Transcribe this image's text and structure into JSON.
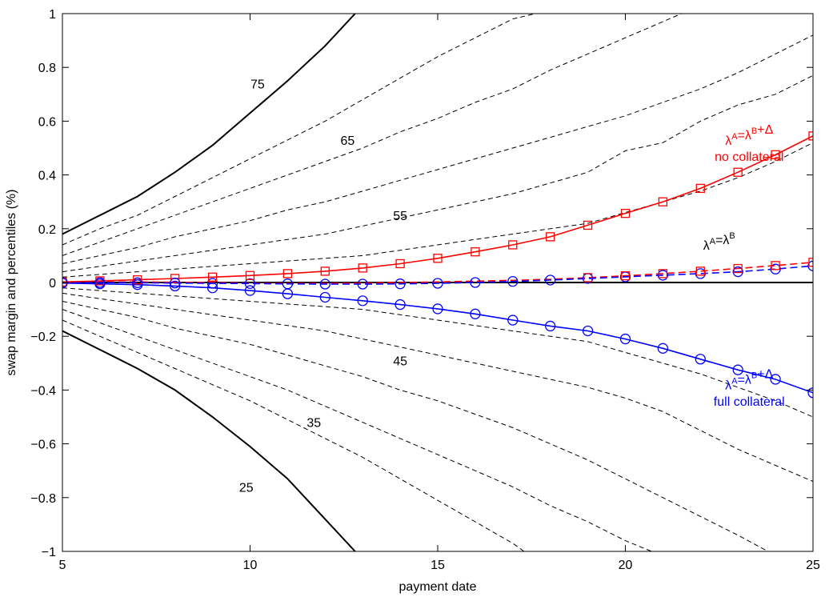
{
  "chart_data": {
    "type": "line",
    "title": "",
    "xlabel": "payment date",
    "ylabel": "swap margin and percentiles (%)",
    "xlim": [
      5,
      25
    ],
    "ylim": [
      -1,
      1
    ],
    "xticks": [
      5,
      10,
      15,
      20,
      25
    ],
    "yticks": [
      -1,
      -0.8,
      -0.6,
      -0.4,
      -0.2,
      0,
      0.2,
      0.4,
      0.6,
      0.8,
      1
    ],
    "ytick_labels": [
      "−1",
      "−0.8",
      "−0.6",
      "−0.4",
      "−0.2",
      "0",
      "0.2",
      "0.4",
      "0.6",
      "0.8",
      "1"
    ],
    "grid": false,
    "legend": "none",
    "colors": {
      "red": "#ff0000",
      "blue": "#0000ff",
      "black": "#000000"
    },
    "percentile_curves": [
      {
        "label": "75",
        "style": "solid",
        "x": [
          5,
          6,
          7,
          8,
          9,
          10,
          11,
          12,
          12.8
        ],
        "y": [
          0.18,
          0.25,
          0.32,
          0.41,
          0.51,
          0.63,
          0.75,
          0.88,
          1.0
        ]
      },
      {
        "label": "",
        "style": "dashed",
        "x": [
          5,
          6,
          7,
          8,
          9,
          10,
          11,
          12,
          13,
          14,
          15,
          16,
          17,
          17.6
        ],
        "y": [
          0.14,
          0.2,
          0.25,
          0.32,
          0.39,
          0.46,
          0.53,
          0.6,
          0.68,
          0.76,
          0.84,
          0.91,
          0.98,
          1.0
        ]
      },
      {
        "label": "65",
        "style": "dashed",
        "x": [
          5,
          6,
          7,
          8,
          9,
          10,
          11,
          12,
          13,
          14,
          15,
          16,
          17,
          18,
          19,
          20,
          21,
          21.5
        ],
        "y": [
          0.1,
          0.15,
          0.2,
          0.25,
          0.3,
          0.35,
          0.4,
          0.45,
          0.5,
          0.56,
          0.61,
          0.67,
          0.72,
          0.79,
          0.85,
          0.91,
          0.97,
          1.0
        ]
      },
      {
        "label": "",
        "style": "dashed",
        "x": [
          5,
          6,
          7,
          8,
          9,
          10,
          11,
          12,
          13,
          14,
          15,
          16,
          17,
          18,
          19,
          20,
          21,
          22,
          23,
          24,
          25
        ],
        "y": [
          0.07,
          0.1,
          0.13,
          0.17,
          0.2,
          0.23,
          0.27,
          0.3,
          0.34,
          0.38,
          0.42,
          0.46,
          0.5,
          0.54,
          0.58,
          0.62,
          0.67,
          0.72,
          0.78,
          0.85,
          0.92
        ]
      },
      {
        "label": "",
        "style": "dashed",
        "x": [
          5,
          6,
          7,
          8,
          9,
          10,
          11,
          12,
          13,
          14,
          15,
          16,
          17,
          18,
          19,
          20,
          21,
          22,
          23,
          24,
          25
        ],
        "y": [
          0.04,
          0.06,
          0.08,
          0.1,
          0.12,
          0.14,
          0.16,
          0.18,
          0.21,
          0.24,
          0.27,
          0.3,
          0.33,
          0.37,
          0.41,
          0.49,
          0.52,
          0.6,
          0.66,
          0.7,
          0.77
        ]
      },
      {
        "label": "55",
        "style": "dashed",
        "x": [
          5,
          6,
          7,
          8,
          9,
          10,
          11,
          12,
          13,
          14,
          15,
          16,
          17,
          18,
          19,
          20,
          21,
          22,
          23,
          24,
          25
        ],
        "y": [
          0.02,
          0.03,
          0.04,
          0.05,
          0.06,
          0.07,
          0.08,
          0.09,
          0.1,
          0.12,
          0.14,
          0.16,
          0.18,
          0.2,
          0.22,
          0.26,
          0.3,
          0.34,
          0.39,
          0.45,
          0.52
        ]
      },
      {
        "label": "",
        "style": "solid",
        "x": [
          5,
          25
        ],
        "y": [
          0,
          0
        ]
      },
      {
        "label": "45",
        "style": "dashed",
        "x": [
          5,
          6,
          7,
          8,
          9,
          10,
          11,
          12,
          13,
          14,
          15,
          16,
          17,
          18,
          19,
          20,
          21,
          22,
          23,
          24,
          25
        ],
        "y": [
          -0.02,
          -0.03,
          -0.04,
          -0.05,
          -0.06,
          -0.07,
          -0.08,
          -0.09,
          -0.1,
          -0.12,
          -0.14,
          -0.16,
          -0.18,
          -0.2,
          -0.22,
          -0.26,
          -0.3,
          -0.34,
          -0.39,
          -0.44,
          -0.5
        ]
      },
      {
        "label": "",
        "style": "dashed",
        "x": [
          5,
          6,
          7,
          8,
          9,
          10,
          11,
          12,
          13,
          14,
          15,
          16,
          17,
          18,
          19,
          20,
          21,
          22,
          23,
          24,
          25
        ],
        "y": [
          -0.04,
          -0.06,
          -0.08,
          -0.1,
          -0.12,
          -0.14,
          -0.16,
          -0.18,
          -0.21,
          -0.24,
          -0.27,
          -0.3,
          -0.33,
          -0.36,
          -0.39,
          -0.43,
          -0.48,
          -0.55,
          -0.62,
          -0.68,
          -0.74
        ]
      },
      {
        "label": "35",
        "style": "dashed",
        "x": [
          5,
          6,
          7,
          8,
          9,
          10,
          11,
          12,
          13,
          14,
          15,
          16,
          17,
          18,
          19,
          20,
          21,
          22,
          23,
          23.8
        ],
        "y": [
          -0.07,
          -0.1,
          -0.13,
          -0.17,
          -0.2,
          -0.23,
          -0.27,
          -0.31,
          -0.35,
          -0.4,
          -0.44,
          -0.49,
          -0.54,
          -0.6,
          -0.66,
          -0.73,
          -0.8,
          -0.87,
          -0.94,
          -1.0
        ]
      },
      {
        "label": "",
        "style": "dashed",
        "x": [
          5,
          6,
          7,
          8,
          9,
          10,
          11,
          12,
          13,
          14,
          15,
          16,
          17,
          18,
          19,
          20,
          20.7
        ],
        "y": [
          -0.1,
          -0.15,
          -0.2,
          -0.25,
          -0.3,
          -0.35,
          -0.4,
          -0.46,
          -0.52,
          -0.58,
          -0.64,
          -0.7,
          -0.76,
          -0.83,
          -0.89,
          -0.96,
          -1.0
        ]
      },
      {
        "label": "",
        "style": "dashed",
        "x": [
          5,
          6,
          7,
          8,
          9,
          10,
          11,
          12,
          13,
          14,
          15,
          16,
          17,
          17.3
        ],
        "y": [
          -0.14,
          -0.2,
          -0.26,
          -0.32,
          -0.38,
          -0.44,
          -0.51,
          -0.58,
          -0.65,
          -0.73,
          -0.81,
          -0.89,
          -0.97,
          -1.0
        ]
      },
      {
        "label": "25",
        "style": "solid",
        "x": [
          5,
          6,
          7,
          8,
          9,
          10,
          11,
          12,
          12.8
        ],
        "y": [
          -0.18,
          -0.25,
          -0.32,
          -0.4,
          -0.5,
          -0.61,
          -0.73,
          -0.88,
          -1.0
        ]
      }
    ],
    "series": [
      {
        "name": "λ^A=λ^B+Δ no collateral",
        "color": "#ff0000",
        "style": "solid",
        "marker": "square",
        "x": [
          5,
          6,
          7,
          8,
          9,
          10,
          11,
          12,
          13,
          14,
          15,
          16,
          17,
          18,
          19,
          20,
          21,
          22,
          23,
          24,
          25
        ],
        "y": [
          0.002,
          0.006,
          0.01,
          0.015,
          0.02,
          0.026,
          0.033,
          0.042,
          0.054,
          0.07,
          0.09,
          0.114,
          0.14,
          0.17,
          0.213,
          0.257,
          0.3,
          0.35,
          0.41,
          0.475,
          0.545
        ]
      },
      {
        "name": "λ^A=λ^B (red)",
        "color": "#ff0000",
        "style": "dashed",
        "marker": "none",
        "x": [
          5,
          6,
          7,
          8,
          9,
          10,
          11,
          12,
          13,
          14,
          15,
          16,
          17,
          18,
          19,
          20,
          21,
          22,
          23,
          24,
          25
        ],
        "y": [
          0.001,
          0.002,
          0.002,
          0.001,
          0.0,
          -0.002,
          -0.003,
          -0.003,
          -0.002,
          0.0,
          0.002,
          0.005,
          0.008,
          0.012,
          0.018,
          0.025,
          0.033,
          0.042,
          0.052,
          0.063,
          0.075
        ]
      },
      {
        "name": "λ^A=λ^B (blue)",
        "color": "#0000ff",
        "style": "dashed",
        "marker": "none",
        "x": [
          5,
          6,
          7,
          8,
          9,
          10,
          11,
          12,
          13,
          14,
          15,
          16,
          17,
          18,
          19,
          20,
          21,
          22,
          23,
          24,
          25
        ],
        "y": [
          0.0,
          0.0,
          -0.001,
          -0.002,
          -0.003,
          -0.004,
          -0.005,
          -0.006,
          -0.006,
          -0.005,
          -0.003,
          0.0,
          0.004,
          0.009,
          0.015,
          0.021,
          0.027,
          0.033,
          0.04,
          0.05,
          0.062
        ]
      },
      {
        "name": "λ^A=λ^B+Δ full collateral",
        "color": "#0000ff",
        "style": "solid",
        "marker": "circle",
        "x": [
          5,
          6,
          7,
          8,
          9,
          10,
          11,
          12,
          13,
          14,
          15,
          16,
          17,
          18,
          19,
          20,
          21,
          22,
          23,
          24,
          25
        ],
        "y": [
          -0.002,
          -0.005,
          -0.008,
          -0.013,
          -0.02,
          -0.03,
          -0.042,
          -0.055,
          -0.068,
          -0.082,
          -0.098,
          -0.117,
          -0.14,
          -0.162,
          -0.18,
          -0.21,
          -0.245,
          -0.285,
          -0.325,
          -0.36,
          -0.41
        ]
      }
    ],
    "markers": {
      "red_dashed_squares": {
        "x": [
          19,
          20,
          21,
          22,
          23,
          24,
          25
        ],
        "y": [
          0.018,
          0.025,
          0.033,
          0.042,
          0.052,
          0.063,
          0.075
        ]
      },
      "blue_dashed_circles": {
        "x": [
          5,
          6,
          7,
          8,
          9,
          10,
          11,
          12,
          13,
          14,
          15,
          16,
          17,
          18,
          19,
          20,
          21,
          22,
          23,
          24,
          25
        ],
        "y": [
          0.0,
          0.0,
          -0.001,
          -0.002,
          -0.003,
          -0.004,
          -0.005,
          -0.006,
          -0.006,
          -0.005,
          -0.003,
          0.0,
          0.004,
          0.009,
          0.015,
          0.021,
          0.027,
          0.033,
          0.04,
          0.05,
          0.062
        ]
      }
    },
    "percentile_labels": [
      {
        "text": "75",
        "x": 10.2,
        "y": 0.74
      },
      {
        "text": "65",
        "x": 12.6,
        "y": 0.53
      },
      {
        "text": "55",
        "x": 14.0,
        "y": 0.25
      },
      {
        "text": "45",
        "x": 14.0,
        "y": -0.29
      },
      {
        "text": "35",
        "x": 11.7,
        "y": -0.52
      },
      {
        "text": "25",
        "x": 9.9,
        "y": -0.76
      }
    ],
    "annotations": [
      {
        "id": "red",
        "color": "#ff0000",
        "x": 23.3,
        "line1": {
          "lam": "λ",
          "a": "A",
          "eq": "=λ",
          "b": "B",
          "tail": "+Δ",
          "y": 0.53
        },
        "line2": {
          "text": "no collateral",
          "y": 0.47
        }
      },
      {
        "id": "black",
        "color": "#000000",
        "x": 22.5,
        "line1": {
          "lam": "λ",
          "a": "A",
          "eq": "=λ",
          "b": "B",
          "tail": "",
          "y": 0.14
        }
      },
      {
        "id": "blue",
        "color": "#0000ff",
        "x": 23.3,
        "line1": {
          "lam": "λ",
          "a": "A",
          "eq": "=λ",
          "b": "B",
          "tail": "+Δ",
          "y": -0.38
        },
        "line2": {
          "text": "full collateral",
          "y": -0.44
        }
      }
    ]
  }
}
